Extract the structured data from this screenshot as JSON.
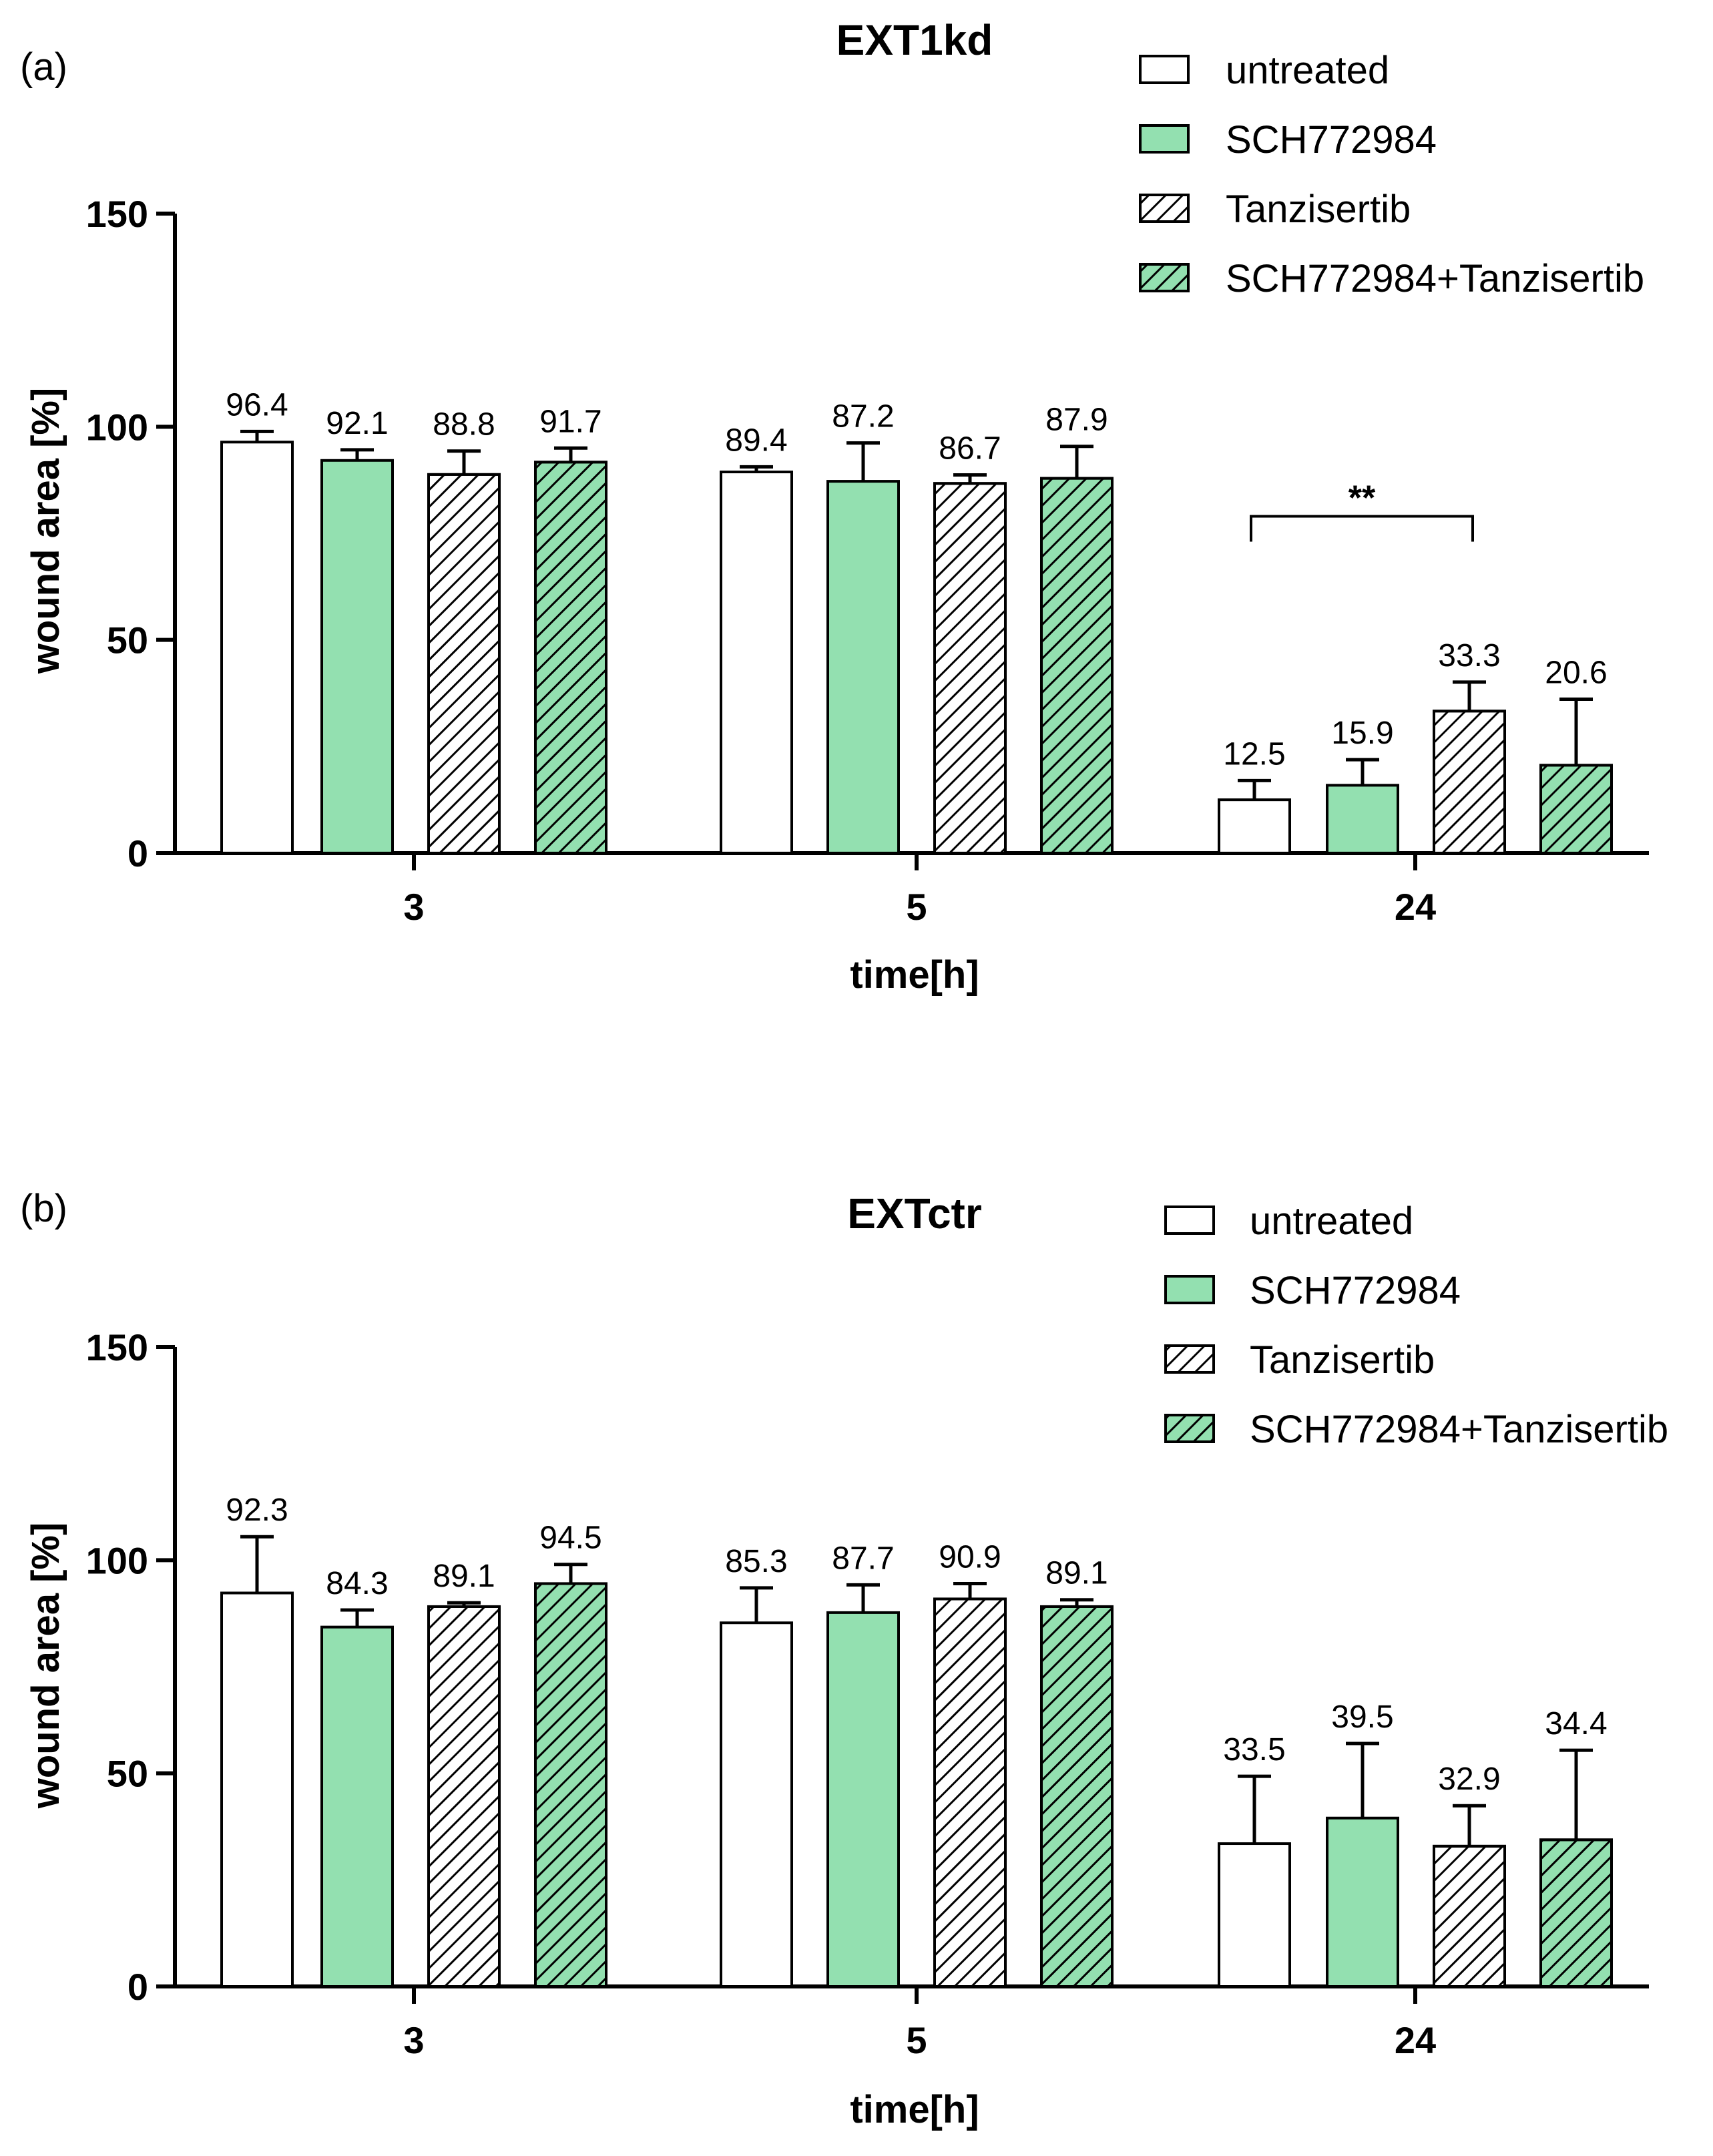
{
  "colors": {
    "untreated": "#ffffff",
    "green": "#93e0b0",
    "stroke": "#000000",
    "hatch": "#000000"
  },
  "legend_swatch_styles": [
    {
      "fill": "#ffffff",
      "hatch": false
    },
    {
      "fill": "#93e0b0",
      "hatch": false
    },
    {
      "fill": "#ffffff",
      "hatch": true
    },
    {
      "fill": "#93e0b0",
      "hatch": true
    }
  ],
  "chart_data": [
    {
      "type": "bar",
      "panel_label": "(a)",
      "title": "EXT1kd",
      "xlabel": "time[h]",
      "ylabel": "wound area [%]",
      "ylim": [
        0,
        150
      ],
      "yticks": [
        0,
        50,
        100,
        150
      ],
      "categories": [
        "3",
        "5",
        "24"
      ],
      "series": [
        {
          "name": "untreated",
          "fill": "#ffffff",
          "hatch": false,
          "values": [
            96.4,
            89.4,
            12.5
          ],
          "errors": [
            2.5,
            1.2,
            4.5
          ],
          "labels": [
            "96.4",
            "89.4",
            "12.5"
          ]
        },
        {
          "name": "SCH772984",
          "fill": "#93e0b0",
          "hatch": false,
          "values": [
            92.1,
            87.2,
            15.9
          ],
          "errors": [
            2.5,
            9.0,
            6.0
          ],
          "labels": [
            "92.1",
            "87.2",
            "15.9"
          ]
        },
        {
          "name": "Tanzisertib",
          "fill": "#ffffff",
          "hatch": true,
          "values": [
            88.8,
            86.7,
            33.3
          ],
          "errors": [
            5.5,
            2.0,
            6.8
          ],
          "labels": [
            "88.8",
            "86.7",
            "33.3"
          ]
        },
        {
          "name": "SCH772984+Tanzisertib",
          "fill": "#93e0b0",
          "hatch": true,
          "values": [
            91.7,
            87.9,
            20.6
          ],
          "errors": [
            3.3,
            7.5,
            15.5
          ],
          "labels": [
            "91.7",
            "87.9",
            "20.6"
          ]
        }
      ],
      "significance": {
        "category": "24",
        "from_series": 0,
        "to_series": 2,
        "level": 79,
        "label": "**"
      },
      "legend": {
        "placement": "top-right",
        "entries": [
          "untreated",
          "SCH772984",
          "Tanzisertib",
          "SCH772984+Tanzisertib"
        ]
      }
    },
    {
      "type": "bar",
      "panel_label": "(b)",
      "title": "EXTctr",
      "xlabel": "time[h]",
      "ylabel": "wound area [%]",
      "ylim": [
        0,
        150
      ],
      "yticks": [
        0,
        50,
        100,
        150
      ],
      "categories": [
        "3",
        "5",
        "24"
      ],
      "series": [
        {
          "name": "untreated",
          "fill": "#ffffff",
          "hatch": false,
          "values": [
            92.3,
            85.3,
            33.5
          ],
          "errors": [
            13.2,
            8.2,
            15.8
          ],
          "labels": [
            "92.3",
            "85.3",
            "33.5"
          ]
        },
        {
          "name": "SCH772984",
          "fill": "#93e0b0",
          "hatch": false,
          "values": [
            84.3,
            87.7,
            39.5
          ],
          "errors": [
            4.0,
            6.5,
            17.5
          ],
          "labels": [
            "84.3",
            "87.7",
            "39.5"
          ]
        },
        {
          "name": "Tanzisertib",
          "fill": "#ffffff",
          "hatch": true,
          "values": [
            89.1,
            90.9,
            32.9
          ],
          "errors": [
            0.9,
            3.6,
            9.5
          ],
          "labels": [
            "89.1",
            "90.9",
            "32.9"
          ]
        },
        {
          "name": "SCH772984+Tanzisertib",
          "fill": "#93e0b0",
          "hatch": true,
          "values": [
            94.5,
            89.1,
            34.4
          ],
          "errors": [
            4.5,
            1.6,
            21.0
          ],
          "labels": [
            "94.5",
            "89.1",
            "34.4"
          ]
        }
      ],
      "legend": {
        "placement": "top-right",
        "entries": [
          "untreated",
          "SCH772984",
          "Tanzisertib",
          "SCH772984+Tanzisertib"
        ]
      }
    }
  ]
}
